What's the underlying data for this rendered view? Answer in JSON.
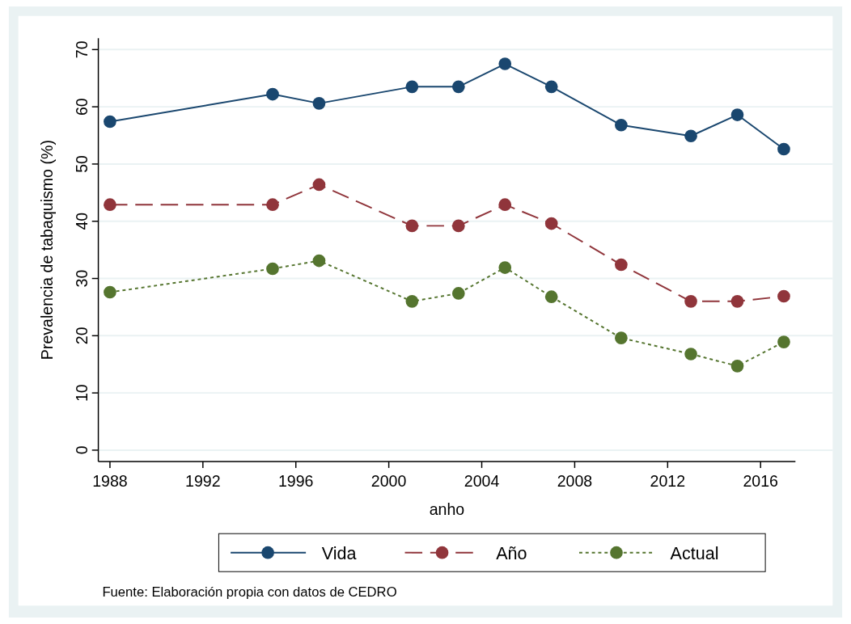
{
  "chart_data": {
    "type": "line",
    "xlabel": "anho",
    "ylabel": "Prevalencia de tabaquismo (%)",
    "x": [
      1988,
      1995,
      1997,
      2001,
      2003,
      2005,
      2007,
      2010,
      2013,
      2015,
      2017
    ],
    "series": [
      {
        "name": "Vida",
        "color": "#1a476f",
        "line_style": "solid",
        "values": [
          57.4,
          62.2,
          60.6,
          63.5,
          63.5,
          67.5,
          63.5,
          56.8,
          54.9,
          58.6,
          52.6
        ]
      },
      {
        "name": "Año",
        "color": "#90353b",
        "line_style": "dashed",
        "values": [
          42.9,
          42.9,
          46.4,
          39.2,
          39.2,
          42.9,
          39.6,
          32.4,
          26.0,
          26.0,
          26.9
        ]
      },
      {
        "name": "Actual",
        "color": "#55752f",
        "line_style": "dotted",
        "values": [
          27.6,
          31.7,
          33.1,
          26.0,
          27.4,
          31.9,
          26.8,
          19.6,
          16.8,
          14.7,
          18.9
        ]
      }
    ],
    "xlim": [
      1987.5,
      2017.5
    ],
    "xticks": [
      1988,
      1992,
      1996,
      2000,
      2004,
      2008,
      2012,
      2016
    ],
    "ylim": [
      -2,
      72
    ],
    "yticks": [
      0,
      10,
      20,
      30,
      40,
      50,
      60,
      70
    ],
    "grid": "y",
    "marker": "circle",
    "legend": "bottom",
    "annotations": [
      "Fuente: Elaboración propia con datos de CEDRO"
    ]
  }
}
